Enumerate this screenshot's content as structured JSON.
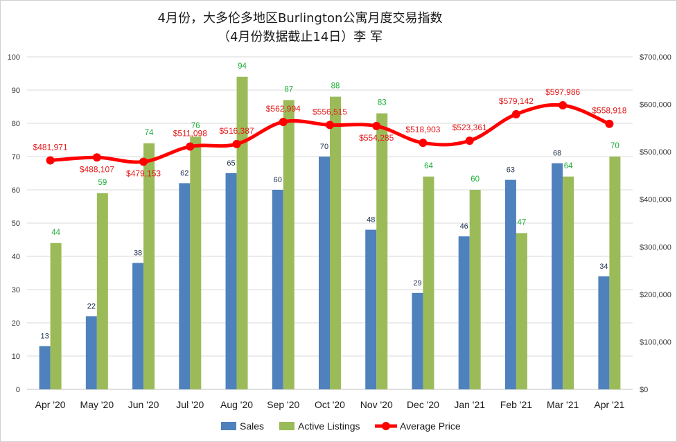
{
  "chart_data": {
    "type": "bar",
    "title": "4月份，大多伦多地区Burlington公寓月度交易指数",
    "subtitle": "（4月份数据截止14日）李 军",
    "categories": [
      "Apr '20",
      "May '20",
      "Jun '20",
      "Jul '20",
      "Aug '20",
      "Sep '20",
      "Oct '20",
      "Nov '20",
      "Dec '20",
      "Jan '21",
      "Feb '21",
      "Mar '21",
      "Apr '21"
    ],
    "series": [
      {
        "name": "Sales",
        "type": "bar",
        "axis": "left",
        "color": "#4f81bd",
        "values": [
          13,
          22,
          38,
          62,
          65,
          60,
          70,
          48,
          29,
          46,
          63,
          68,
          34
        ]
      },
      {
        "name": "Active Listings",
        "type": "bar",
        "axis": "left",
        "color": "#9bbb59",
        "values": [
          44,
          59,
          74,
          76,
          94,
          87,
          88,
          83,
          64,
          60,
          47,
          64,
          70
        ]
      },
      {
        "name": "Average Price",
        "type": "line",
        "axis": "right",
        "color": "#ff0000",
        "values": [
          481971,
          488107,
          479153,
          511098,
          516387,
          562994,
          556515,
          554285,
          518903,
          523361,
          579142,
          597986,
          558918
        ],
        "labels": [
          "$481,971",
          "$488,107",
          "$479,153",
          "$511,098",
          "$516,387",
          "$562,994",
          "$556,515",
          "$554,285",
          "$518,903",
          "$523,361",
          "$579,142",
          "$597,986",
          "$558,918"
        ]
      }
    ],
    "ylim_left": [
      0,
      100
    ],
    "ylim_right": [
      0,
      700000
    ],
    "yticks_left": [
      "0",
      "10",
      "20",
      "30",
      "40",
      "50",
      "60",
      "70",
      "80",
      "90",
      "100"
    ],
    "yticks_right": [
      "$0",
      "$100,000",
      "$200,000",
      "$300,000",
      "$400,000",
      "$500,000",
      "$600,000",
      "$700,000"
    ],
    "grid": true,
    "legend": {
      "position": "bottom",
      "entries": [
        "Sales",
        "Active Listings",
        "Average Price"
      ]
    },
    "colors": {
      "sales_label": "#1f2f4f",
      "listing_label": "#1fae3a",
      "price_label": "#e51a1a",
      "grid": "#d9d9d9"
    }
  }
}
